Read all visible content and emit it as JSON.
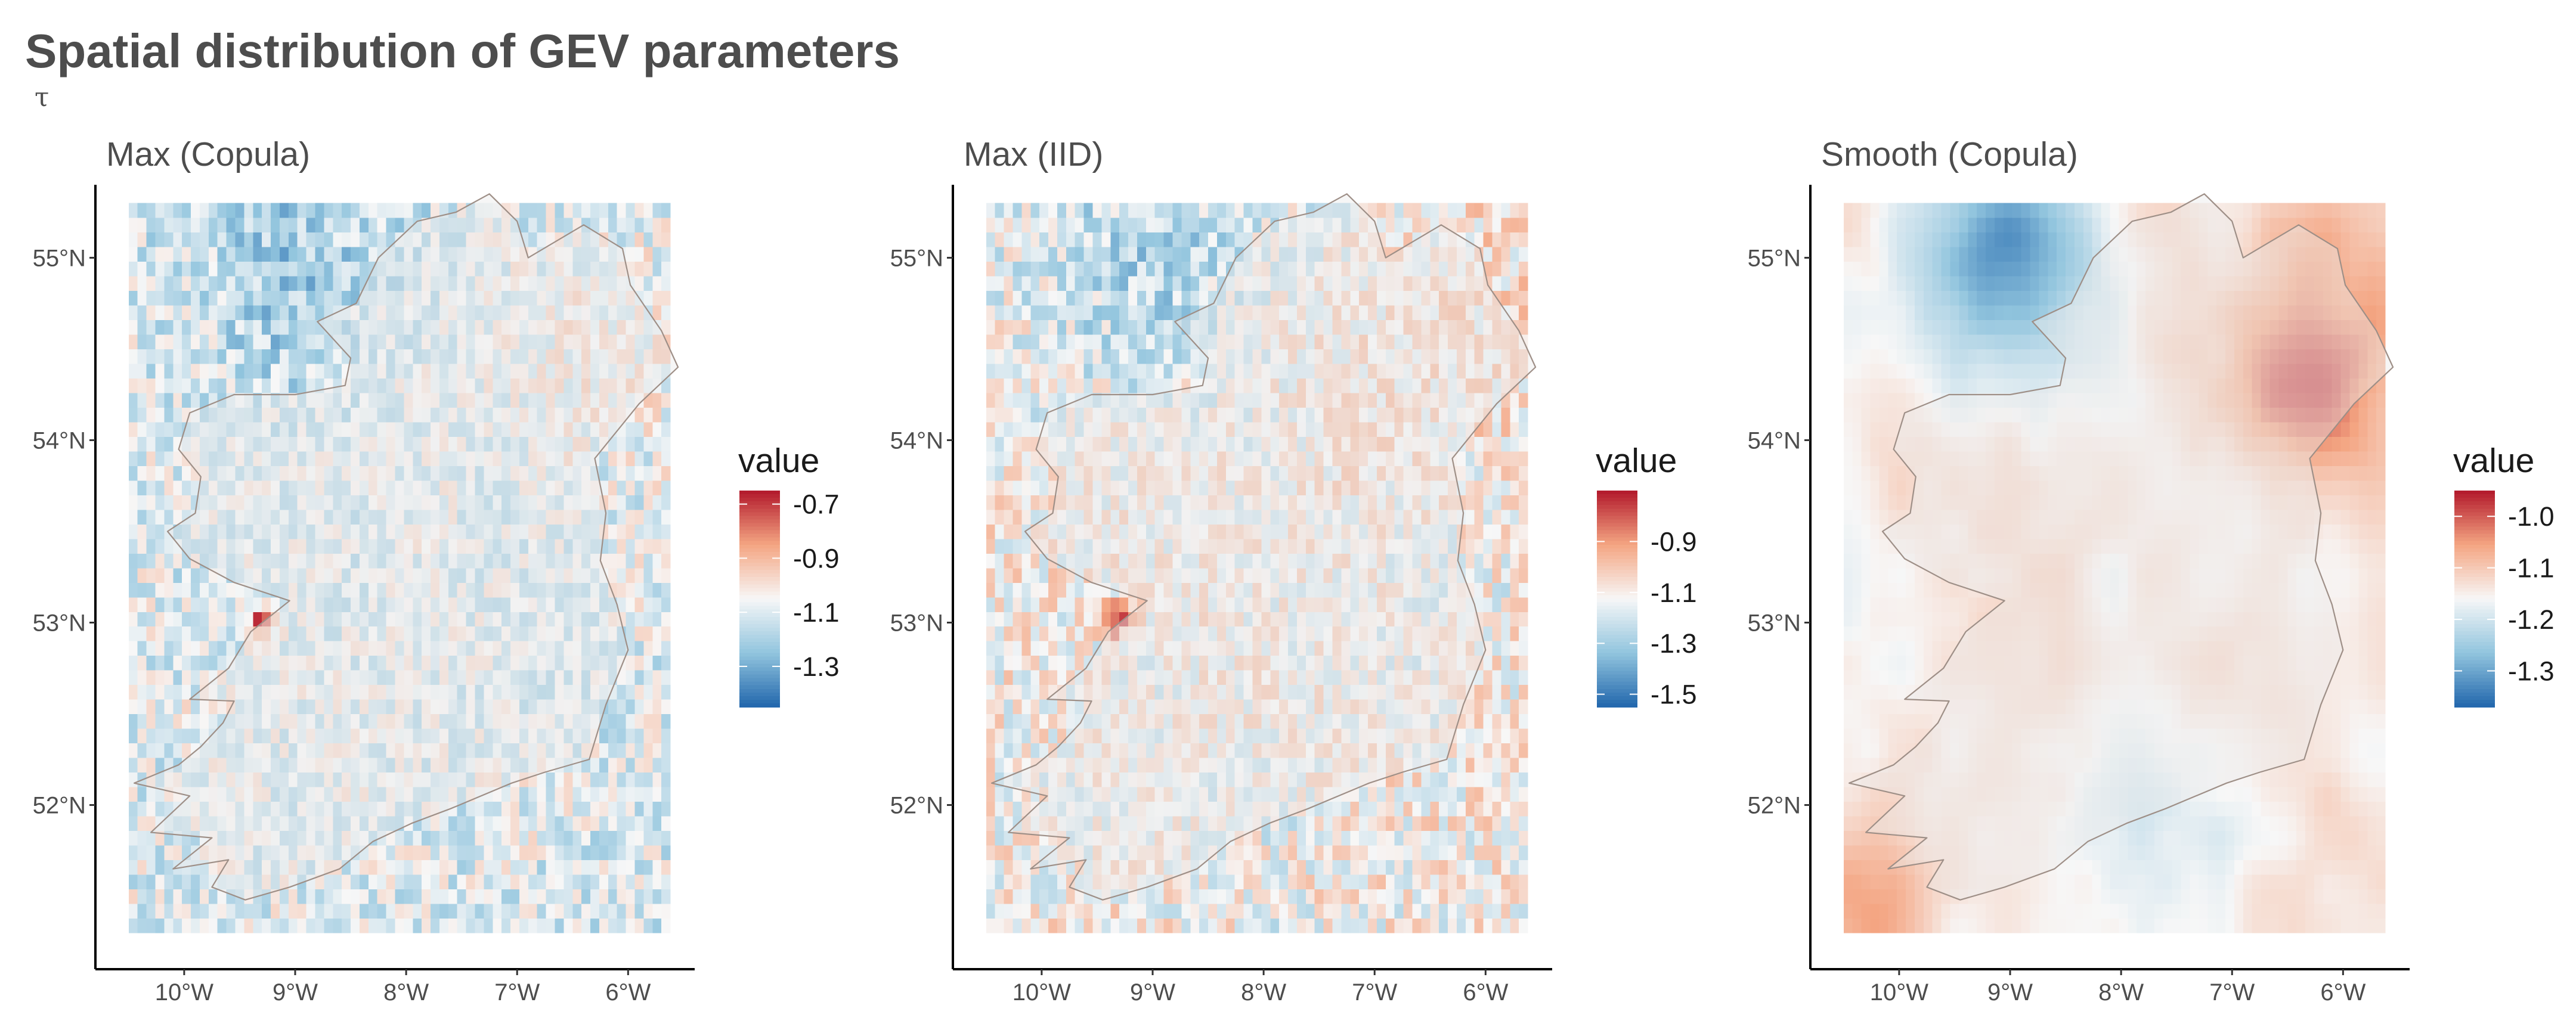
{
  "title": "Spatial distribution of GEV parameters",
  "subtitle": "τ",
  "colors": {
    "low": "#2166ac",
    "mid_low": "#92c5de",
    "mid": "#f7f7f7",
    "mid_high": "#f4a582",
    "high": "#b2182b",
    "coast": "#9e8f87",
    "axis": "#000000",
    "land_tint": "#ececec"
  },
  "chart_data": [
    {
      "type": "heatmap",
      "title": "Max (Copula)",
      "xlabel": "",
      "ylabel": "",
      "xlim": [
        -10.8,
        -5.4
      ],
      "ylim": [
        51.1,
        55.4
      ],
      "x_ticks": [
        -10,
        -9,
        -8,
        -7,
        -6
      ],
      "x_tick_labels": [
        "10°W",
        "9°W",
        "8°W",
        "7°W",
        "6°W"
      ],
      "y_ticks": [
        52,
        53,
        54,
        55
      ],
      "y_tick_labels": [
        "52°N",
        "53°N",
        "54°N",
        "55°N"
      ],
      "grid": false,
      "legend": {
        "title": "value",
        "position": "right",
        "range": [
          -1.45,
          -0.65
        ],
        "breaks": [
          -0.7,
          -0.9,
          -1.1,
          -1.3
        ],
        "labels": [
          "-0.7",
          "-0.9",
          "-1.1",
          "-1.3"
        ]
      },
      "field": {
        "lon_range": [
          -10.5,
          -5.6
        ],
        "lat_range": [
          51.3,
          55.3
        ],
        "resolution_deg": 0.08,
        "center_value": -1.1,
        "noise_amplitude": 0.09,
        "smoothness": "rough",
        "features": [
          {
            "lon": -9.0,
            "lat": 55.0,
            "delta": -0.12,
            "spread": 0.55
          },
          {
            "lon": -6.3,
            "lat": 54.5,
            "delta": 0.06,
            "spread": 0.6
          },
          {
            "lon": -9.3,
            "lat": 53.0,
            "delta": 0.35,
            "spread": 0.08
          }
        ]
      }
    },
    {
      "type": "heatmap",
      "title": "Max (IID)",
      "xlabel": "",
      "ylabel": "",
      "xlim": [
        -10.8,
        -5.4
      ],
      "ylim": [
        51.1,
        55.4
      ],
      "x_ticks": [
        -10,
        -9,
        -8,
        -7,
        -6
      ],
      "x_tick_labels": [
        "10°W",
        "9°W",
        "8°W",
        "7°W",
        "6°W"
      ],
      "y_ticks": [
        52,
        53,
        54,
        55
      ],
      "y_tick_labels": [
        "52°N",
        "53°N",
        "54°N",
        "55°N"
      ],
      "grid": false,
      "legend": {
        "title": "value",
        "position": "right",
        "range": [
          -1.55,
          -0.7
        ],
        "breaks": [
          -0.9,
          -1.1,
          -1.3,
          -1.5
        ],
        "labels": [
          "-0.9",
          "-1.1",
          "-1.3",
          "-1.5"
        ]
      },
      "field": {
        "lon_range": [
          -10.5,
          -5.6
        ],
        "lat_range": [
          51.3,
          55.3
        ],
        "resolution_deg": 0.08,
        "center_value": -1.12,
        "noise_amplitude": 0.1,
        "smoothness": "rough",
        "features": [
          {
            "lon": -9.0,
            "lat": 55.0,
            "delta": -0.16,
            "spread": 0.55
          },
          {
            "lon": -6.3,
            "lat": 54.5,
            "delta": 0.07,
            "spread": 0.6
          },
          {
            "lon": -9.3,
            "lat": 53.0,
            "delta": 0.3,
            "spread": 0.08
          }
        ]
      }
    },
    {
      "type": "heatmap",
      "title": "Smooth (Copula)",
      "xlabel": "",
      "ylabel": "",
      "xlim": [
        -10.8,
        -5.4
      ],
      "ylim": [
        51.1,
        55.4
      ],
      "x_ticks": [
        -10,
        -9,
        -8,
        -7,
        -6
      ],
      "x_tick_labels": [
        "10°W",
        "9°W",
        "8°W",
        "7°W",
        "6°W"
      ],
      "y_ticks": [
        52,
        53,
        54,
        55
      ],
      "y_tick_labels": [
        "52°N",
        "53°N",
        "54°N",
        "55°N"
      ],
      "grid": false,
      "legend": {
        "title": "value",
        "position": "right",
        "range": [
          -1.37,
          -0.95
        ],
        "breaks": [
          -1.0,
          -1.1,
          -1.2,
          -1.3
        ],
        "labels": [
          "-1.0",
          "-1.1",
          "-1.2",
          "-1.3"
        ]
      },
      "field": {
        "lon_range": [
          -10.5,
          -5.6
        ],
        "lat_range": [
          51.3,
          55.3
        ],
        "resolution_deg": 0.08,
        "center_value": -1.14,
        "noise_amplitude": 0.025,
        "smoothness": "smooth",
        "features": [
          {
            "lon": -9.0,
            "lat": 54.95,
            "delta": -0.17,
            "spread": 0.45
          },
          {
            "lon": -6.3,
            "lat": 54.45,
            "delta": 0.14,
            "spread": 0.45
          },
          {
            "lon": -10.4,
            "lat": 51.4,
            "delta": 0.1,
            "spread": 0.35
          },
          {
            "lon": -7.8,
            "lat": 52.0,
            "delta": -0.05,
            "spread": 0.4
          }
        ]
      }
    }
  ]
}
